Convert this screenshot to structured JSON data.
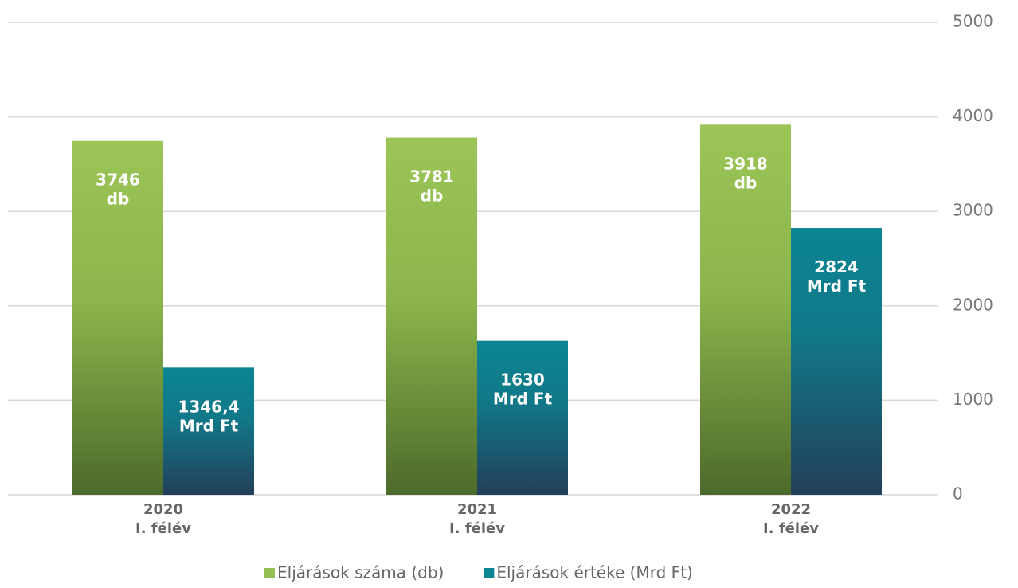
{
  "chart_data": {
    "type": "bar",
    "categories": [
      "2020\nI. félév",
      "2021\nI. félév",
      "2022\nI. félév"
    ],
    "series": [
      {
        "name": "Eljárások száma (db)",
        "color": "#94c052",
        "values": [
          3746,
          3781,
          3918
        ],
        "value_labels": [
          "3746\ndb",
          "3781\ndb",
          "3918\ndb"
        ]
      },
      {
        "name": "Eljárások értéke (Mrd Ft)",
        "color": "#0b8594",
        "values": [
          1346.4,
          1630,
          2824
        ],
        "value_labels": [
          "1346,4\nMrd Ft",
          "1630\nMrd Ft",
          "2824\nMrd Ft"
        ]
      }
    ],
    "ylim": [
      0,
      5000
    ],
    "yticks": [
      0,
      1000,
      2000,
      3000,
      4000,
      5000
    ],
    "grid": true,
    "y_axis_side": "right",
    "legend": "bottom"
  }
}
